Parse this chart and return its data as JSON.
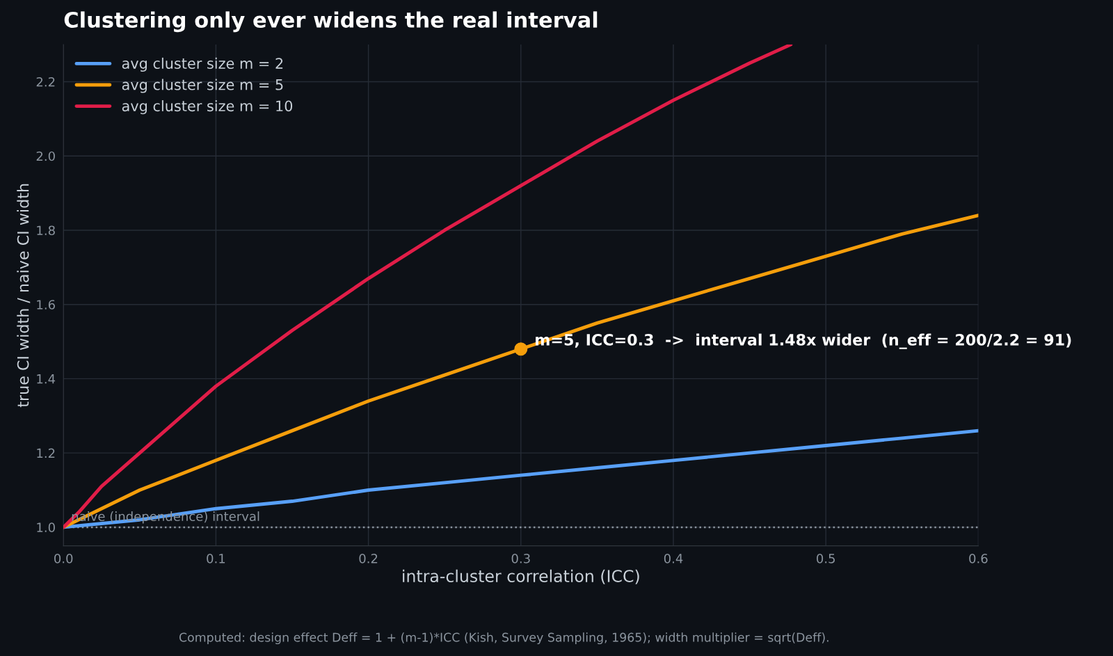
{
  "chart_data": {
    "type": "line",
    "title": "Clustering only ever widens the real interval",
    "xlabel": "intra-cluster correlation (ICC)",
    "ylabel": "true CI width / naive CI width",
    "xlim": [
      0,
      0.6
    ],
    "xticks": [
      {
        "value": 0,
        "label": "0.0"
      },
      0.1,
      0.2,
      0.3,
      0.4,
      0.5,
      0.6
    ],
    "ylim": [
      0.95,
      2.3
    ],
    "yticks": [
      {
        "value": 1,
        "label": "1.0"
      },
      1.2,
      1.4,
      1.6,
      1.8,
      {
        "value": 2,
        "label": "2.0"
      },
      2.2
    ],
    "grid": true,
    "legend": "top left",
    "marker": "none",
    "line_style": "solid",
    "series": [
      {
        "name": "avg cluster size m = 2",
        "color": "#58a0f8",
        "x": [
          0,
          0.05,
          0.1,
          0.15,
          0.2,
          0.25,
          0.3,
          0.35,
          0.4,
          0.45,
          0.5,
          0.55,
          0.6
        ],
        "values": [
          1.0,
          1.02,
          1.05,
          1.07,
          1.1,
          1.12,
          1.14,
          1.16,
          1.18,
          1.2,
          1.22,
          1.24,
          1.26
        ]
      },
      {
        "name": "avg cluster size m = 5",
        "color": "#f59e0b",
        "x": [
          0,
          0.05,
          0.1,
          0.15,
          0.2,
          0.25,
          0.3,
          0.35,
          0.4,
          0.45,
          0.5,
          0.55,
          0.6
        ],
        "values": [
          1.0,
          1.1,
          1.18,
          1.26,
          1.34,
          1.41,
          1.48,
          1.55,
          1.61,
          1.67,
          1.73,
          1.79,
          1.84
        ]
      },
      {
        "name": "avg cluster size m = 10",
        "color": "#e11d48",
        "x": [
          0,
          0.01,
          0.025,
          0.05,
          0.1,
          0.15,
          0.2,
          0.25,
          0.3,
          0.35,
          0.4,
          0.45,
          0.477
        ],
        "values": [
          1.0,
          1.04,
          1.11,
          1.2,
          1.38,
          1.53,
          1.67,
          1.8,
          1.92,
          2.04,
          2.15,
          2.25,
          2.3
        ]
      },
      {
        "type": "scatter",
        "color": "#f59e0b",
        "marker": "circle",
        "x": [
          0.3
        ],
        "values": [
          1.48
        ]
      }
    ],
    "ref_lines": [
      {
        "axis": "y",
        "value": 1.0,
        "label": "naive (independence) interval",
        "color": "#8b949e",
        "line_style": "dotted"
      }
    ],
    "annotations": [
      {
        "text": "m=5, ICC=0.3  ->  interval 1.48x wider  (n_eff = 200/2.2 = 91)",
        "x": 0.3,
        "y": 1.48
      },
      "Computed: design effect Deff = 1 + (m-1)*ICC (Kish, Survey Sampling, 1965); width multiplier = sqrt(Deff)."
    ]
  }
}
